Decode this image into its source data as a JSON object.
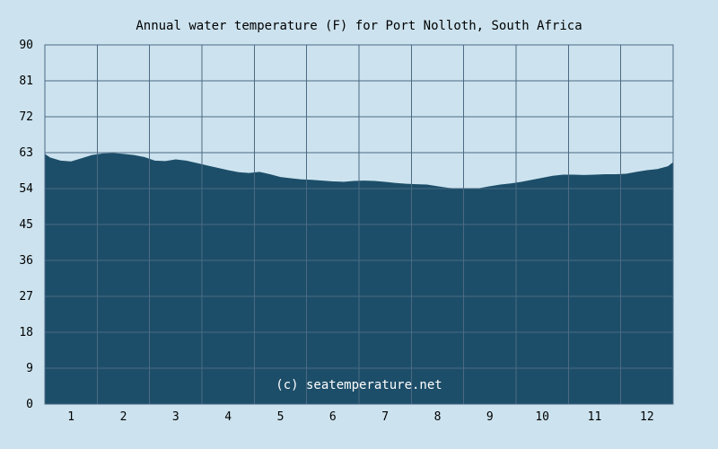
{
  "chart_data": {
    "type": "area",
    "title": "Annual water temperature (F) for Port Nolloth, South Africa",
    "watermark": "(c) seatemperature.net",
    "xlabel": "",
    "ylabel": "",
    "x_ticks": [
      "1",
      "2",
      "3",
      "4",
      "5",
      "6",
      "7",
      "8",
      "9",
      "10",
      "11",
      "12"
    ],
    "y_ticks": [
      "0",
      "9",
      "18",
      "27",
      "36",
      "45",
      "54",
      "63",
      "72",
      "81",
      "90"
    ],
    "ylim": [
      0,
      90
    ],
    "xlim": [
      0.5,
      12.5
    ],
    "grid": true,
    "series": [
      {
        "x": [
          0.5,
          0.6,
          0.8,
          1.0,
          1.2,
          1.4,
          1.6,
          1.8,
          2.0,
          2.2,
          2.4,
          2.6,
          2.8,
          3.0,
          3.2,
          3.4,
          3.6,
          3.8,
          4.0,
          4.2,
          4.4,
          4.6,
          4.8,
          5.0,
          5.2,
          5.4,
          5.6,
          5.8,
          6.0,
          6.2,
          6.4,
          6.6,
          6.8,
          7.0,
          7.2,
          7.4,
          7.6,
          7.8,
          8.0,
          8.2,
          8.4,
          8.6,
          8.8,
          9.0,
          9.2,
          9.4,
          9.6,
          9.8,
          10.0,
          10.2,
          10.4,
          10.6,
          10.8,
          11.0,
          11.2,
          11.4,
          11.6,
          11.8,
          12.0,
          12.2,
          12.4,
          12.5
        ],
        "values": [
          62.7,
          61.8,
          61.0,
          60.8,
          61.6,
          62.4,
          62.8,
          62.9,
          62.7,
          62.4,
          61.9,
          61.0,
          60.9,
          61.3,
          61.0,
          60.4,
          59.8,
          59.2,
          58.6,
          58.1,
          57.9,
          58.2,
          57.6,
          56.9,
          56.6,
          56.3,
          56.2,
          56.0,
          55.8,
          55.7,
          55.9,
          56.0,
          55.9,
          55.7,
          55.4,
          55.2,
          55.1,
          55.0,
          54.6,
          54.2,
          54.0,
          53.9,
          54.1,
          54.6,
          55.0,
          55.3,
          55.7,
          56.2,
          56.7,
          57.2,
          57.5,
          57.5,
          57.4,
          57.5,
          57.6,
          57.6,
          57.7,
          58.2,
          58.6,
          58.9,
          59.6,
          60.6
        ]
      }
    ]
  },
  "colors": {
    "page_background": "#cce3ef",
    "plot_background": "#cce3ef",
    "area_fill": "#1d4e69",
    "grid_line": "#4c6a83",
    "axis_text": "#000000",
    "watermark_text": "#ffffff"
  }
}
